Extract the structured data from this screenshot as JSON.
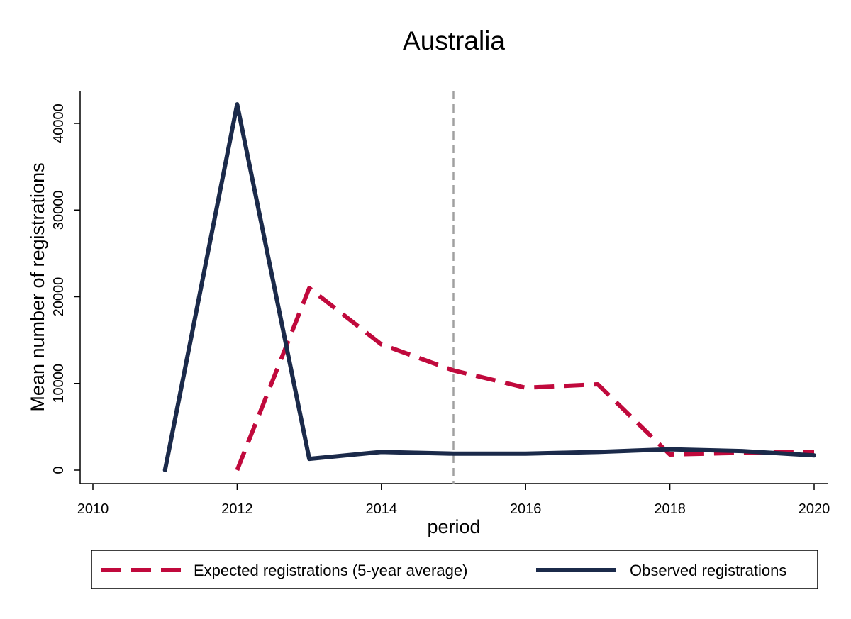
{
  "chart_data": {
    "type": "line",
    "title": "Australia",
    "xlabel": "period",
    "ylabel": "Mean number of registrations",
    "xlim": [
      2010,
      2020
    ],
    "ylim": [
      0,
      40000
    ],
    "x_ticks": [
      2010,
      2012,
      2014,
      2016,
      2018,
      2020
    ],
    "y_ticks": [
      0,
      10000,
      20000,
      30000,
      40000
    ],
    "reference_line_x": 2015,
    "grid": false,
    "legend_position": "bottom",
    "series": [
      {
        "name": "Expected registrations (5-year average)",
        "color": "#c0093c",
        "style": "dashed",
        "points": [
          [
            2012,
            0
          ],
          [
            2013,
            21000
          ],
          [
            2014,
            14500
          ],
          [
            2015,
            11500
          ],
          [
            2016,
            9500
          ],
          [
            2017,
            9900
          ],
          [
            2018,
            1800
          ],
          [
            2019,
            2000
          ],
          [
            2020,
            2100
          ]
        ]
      },
      {
        "name": "Observed registrations",
        "color": "#1b2a4a",
        "style": "solid",
        "points": [
          [
            2011,
            0
          ],
          [
            2012,
            42200
          ],
          [
            2013,
            1300
          ],
          [
            2014,
            2100
          ],
          [
            2015,
            1900
          ],
          [
            2016,
            1900
          ],
          [
            2017,
            2100
          ],
          [
            2018,
            2400
          ],
          [
            2019,
            2200
          ],
          [
            2020,
            1700
          ]
        ]
      }
    ]
  }
}
